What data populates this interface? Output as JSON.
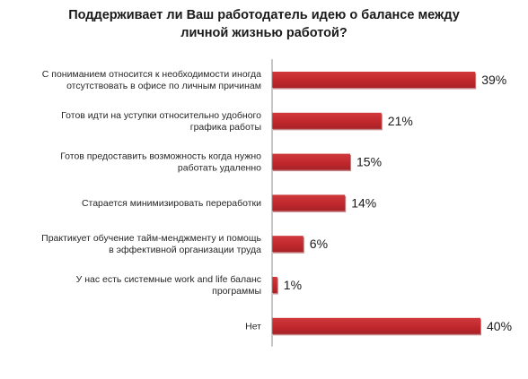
{
  "chart_data": {
    "type": "bar",
    "orientation": "horizontal",
    "title_lines": [
      "Поддерживает ли Ваш работодатель  идею о балансе между",
      "личной жизнью работой?"
    ],
    "categories": [
      [
        "С пониманием относится к необходимости иногда",
        "отсутствовать в офисе по личным причинам"
      ],
      [
        "Готов идти на уступки относительно удобного",
        "графика работы"
      ],
      [
        "Готов предоставить возможность когда нужно",
        "работать удаленно"
      ],
      [
        "Старается минимизировать переработки"
      ],
      [
        "Практикует обучение тайм-менджменту и помощь",
        "в эффективной организации труда"
      ],
      [
        "У нас есть системные work and life баланс",
        "программы"
      ],
      [
        "Нет"
      ]
    ],
    "values": [
      39,
      21,
      15,
      14,
      6,
      1,
      40
    ],
    "value_labels": [
      "39%",
      "21%",
      "15%",
      "14%",
      "6%",
      "1%",
      "40%"
    ],
    "value_unit": "%",
    "xlim": [
      0,
      40
    ],
    "grid": false,
    "legend": "none",
    "colors": {
      "bar_fill": "#c0282d",
      "bar_shade": "#8f1c20",
      "axis_line": "#8c8c8c"
    }
  }
}
